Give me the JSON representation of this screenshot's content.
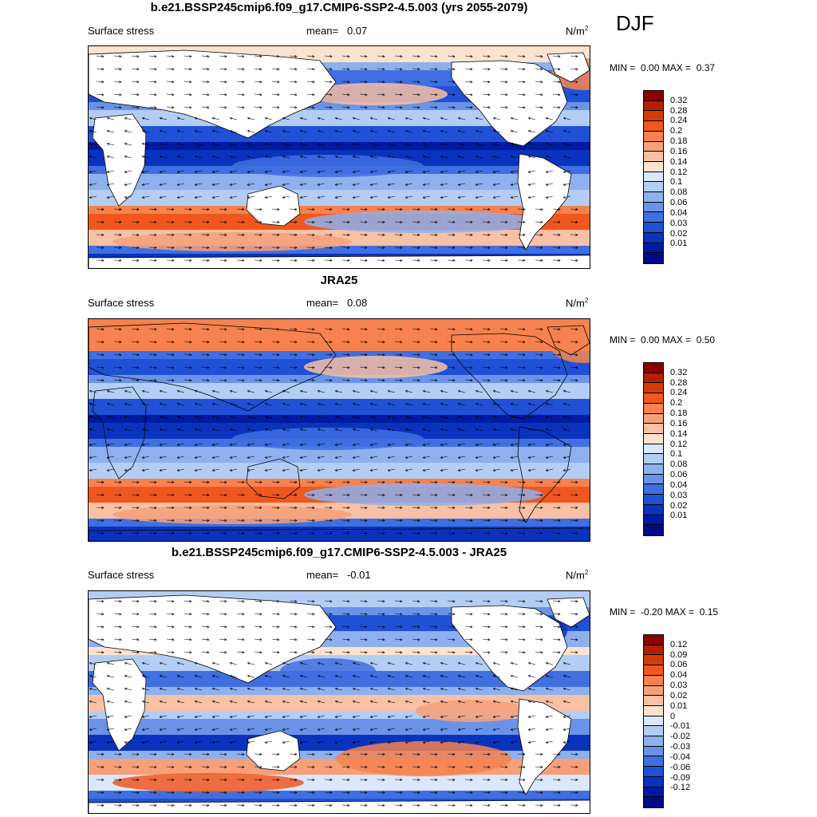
{
  "season": "DJF",
  "panels": [
    {
      "title": "b.e21.BSSP245cmip6.f09_g17.CMIP6-SSP2-4.5.003 (yrs 2055-2079)",
      "left_label": "Surface stress",
      "mean_label": "mean=",
      "mean_value": "0.07",
      "units": "N/m",
      "units_sup": "2",
      "min_label": "MIN =",
      "min_value": "0.00",
      "max_label": "MAX =",
      "max_value": "0.37",
      "colorbar": {
        "colors": [
          "#8b0000",
          "#b22000",
          "#d63a0a",
          "#f0571f",
          "#f5824f",
          "#f6a07a",
          "#f8c1a5",
          "#fce3cf",
          "#dbe8fb",
          "#b4cdf4",
          "#8eb0ee",
          "#6a93e8",
          "#3f6fe0",
          "#2050d6",
          "#0a33bd",
          "#001aa0",
          "#000a87"
        ],
        "ticks": [
          "0.32",
          "0.28",
          "0.24",
          "0.2",
          "0.18",
          "0.16",
          "0.14",
          "0.12",
          "0.1",
          "0.08",
          "0.06",
          "0.04",
          "0.03",
          "0.02",
          "0.01"
        ]
      }
    },
    {
      "title": "JRA25",
      "left_label": "Surface stress",
      "mean_label": "mean=",
      "mean_value": "0.08",
      "units": "N/m",
      "units_sup": "2",
      "min_label": "MIN =",
      "min_value": "0.00",
      "max_label": "MAX =",
      "max_value": "0.50",
      "colorbar": {
        "colors": [
          "#8b0000",
          "#b22000",
          "#d63a0a",
          "#f0571f",
          "#f5824f",
          "#f6a07a",
          "#f8c1a5",
          "#fce3cf",
          "#dbe8fb",
          "#b4cdf4",
          "#8eb0ee",
          "#6a93e8",
          "#3f6fe0",
          "#2050d6",
          "#0a33bd",
          "#001aa0",
          "#000a87"
        ],
        "ticks": [
          "0.32",
          "0.28",
          "0.24",
          "0.2",
          "0.18",
          "0.16",
          "0.14",
          "0.12",
          "0.1",
          "0.08",
          "0.06",
          "0.04",
          "0.03",
          "0.02",
          "0.01"
        ]
      }
    },
    {
      "title": "b.e21.BSSP245cmip6.f09_g17.CMIP6-SSP2-4.5.003 - JRA25",
      "left_label": "Surface stress",
      "mean_label": "mean=",
      "mean_value": "-0.01",
      "units": "N/m",
      "units_sup": "2",
      "min_label": "MIN =",
      "min_value": "-0.20",
      "max_label": "MAX =",
      "max_value": "0.15",
      "colorbar": {
        "colors": [
          "#8b0000",
          "#b22000",
          "#d63a0a",
          "#f0571f",
          "#f5824f",
          "#f6a07a",
          "#f8c1a5",
          "#fce3cf",
          "#dbe8fb",
          "#b4cdf4",
          "#8eb0ee",
          "#6a93e8",
          "#3f6fe0",
          "#2050d6",
          "#0a33bd",
          "#001aa0",
          "#000a87"
        ],
        "ticks": [
          "0.12",
          "0.09",
          "0.06",
          "0.04",
          "0.03",
          "0.02",
          "0.01",
          "0",
          "-0.01",
          "-0.02",
          "-0.03",
          "-0.04",
          "-0.06",
          "-0.09",
          "-0.12"
        ]
      }
    }
  ],
  "chart_data": [
    {
      "type": "heatmap",
      "title": "b.e21.BSSP245cmip6.f09_g17.CMIP6-SSP2-4.5.003 (yrs 2055-2079)",
      "variable": "Surface stress",
      "units": "N/m2",
      "mean": 0.07,
      "min": 0.0,
      "max": 0.37,
      "levels": [
        0.01,
        0.02,
        0.03,
        0.04,
        0.06,
        0.08,
        0.1,
        0.12,
        0.14,
        0.16,
        0.18,
        0.2,
        0.24,
        0.28,
        0.32
      ]
    },
    {
      "type": "heatmap",
      "title": "JRA25",
      "variable": "Surface stress",
      "units": "N/m2",
      "mean": 0.08,
      "min": 0.0,
      "max": 0.5,
      "levels": [
        0.01,
        0.02,
        0.03,
        0.04,
        0.06,
        0.08,
        0.1,
        0.12,
        0.14,
        0.16,
        0.18,
        0.2,
        0.24,
        0.28,
        0.32
      ]
    },
    {
      "type": "heatmap",
      "title": "b.e21.BSSP245cmip6.f09_g17.CMIP6-SSP2-4.5.003 - JRA25",
      "variable": "Surface stress",
      "units": "N/m2",
      "mean": -0.01,
      "min": -0.2,
      "max": 0.15,
      "levels": [
        -0.12,
        -0.09,
        -0.06,
        -0.04,
        -0.03,
        -0.02,
        -0.01,
        0,
        0.01,
        0.02,
        0.03,
        0.04,
        0.06,
        0.09,
        0.12
      ]
    }
  ]
}
